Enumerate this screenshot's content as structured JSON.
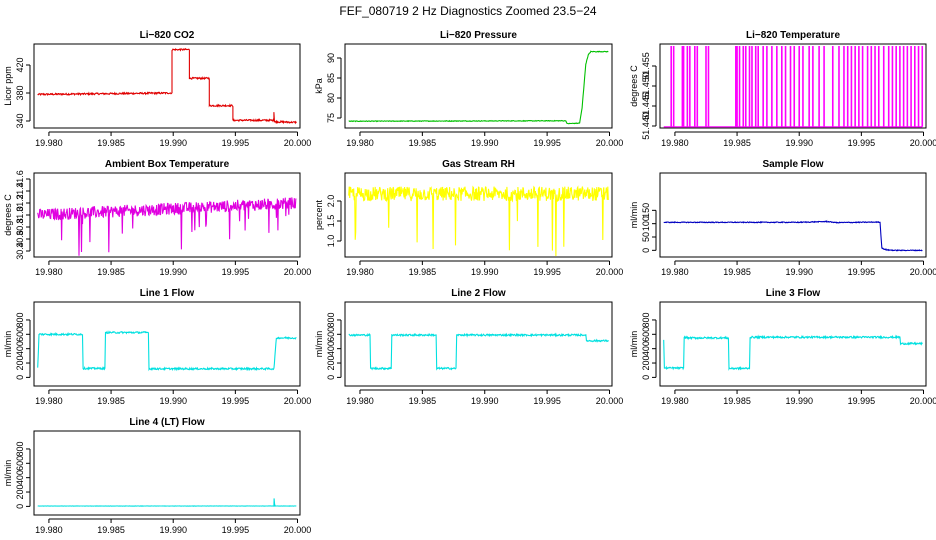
{
  "figure": {
    "title": "FEF_080719  2 Hz Diagnostics Zoomed 23.5−24"
  },
  "chart_data": [
    {
      "type": "line",
      "title": "Li−820 CO2",
      "ylabel": "Licor ppm",
      "color": "#e00000",
      "noise": 1.2,
      "xlim": [
        19.9788,
        20.0002
      ],
      "ylim": [
        330,
        450
      ],
      "xticks": [
        19.98,
        19.985,
        19.99,
        19.995,
        20.0
      ],
      "xtick_labels": [
        "19.980",
        "19.985",
        "19.990",
        "19.995",
        "20.000"
      ],
      "yticks": [
        340,
        380,
        420
      ],
      "ytick_labels": [
        "340",
        "380",
        "420"
      ],
      "x": [
        19.9791,
        19.9899,
        19.9899,
        19.9913,
        19.9913,
        19.9929,
        19.9929,
        19.9948,
        19.9948,
        19.9981,
        19.9981,
        19.99815,
        19.99815,
        19.9999
      ],
      "values": [
        378,
        380,
        442,
        442,
        401,
        401,
        362,
        362,
        341,
        341,
        353,
        339,
        339,
        338
      ]
    },
    {
      "type": "line",
      "title": "Li−820 Pressure",
      "ylabel": "kPa",
      "color": "#00c000",
      "noise": 0.08,
      "xlim": [
        19.9788,
        20.0002
      ],
      "ylim": [
        72.5,
        93.5
      ],
      "xticks": [
        19.98,
        19.985,
        19.99,
        19.995,
        20.0
      ],
      "xtick_labels": [
        "19.980",
        "19.985",
        "19.990",
        "19.995",
        "20.000"
      ],
      "yticks": [
        75,
        80,
        85,
        90
      ],
      "ytick_labels": [
        "75",
        "80",
        "85",
        "90"
      ],
      "x": [
        19.9791,
        19.9965,
        19.9966,
        19.9976,
        19.9978,
        19.9981,
        19.9983,
        19.9985,
        19.9999
      ],
      "values": [
        74.2,
        74.3,
        73.6,
        73.7,
        77.5,
        88.5,
        90.8,
        91.6,
        91.6
      ]
    },
    {
      "type": "spikes",
      "title": "Li−820 Temperature",
      "ylabel": "degrees C",
      "color": "#ff00ff",
      "xlim": [
        19.9788,
        20.0002
      ],
      "ylim": [
        51.4395,
        51.4605
      ],
      "xticks": [
        19.98,
        19.985,
        19.99,
        19.995,
        20.0
      ],
      "xtick_labels": [
        "19.980",
        "19.985",
        "19.990",
        "19.995",
        "20.000"
      ],
      "yticks": [
        51.44,
        51.445,
        51.45,
        51.455
      ],
      "ytick_labels": [
        "51.440",
        "51.445",
        "51.450",
        "51.455"
      ],
      "base": 51.4398,
      "high": 51.46,
      "spike_x": [
        19.9797,
        19.9799,
        19.9806,
        19.9807,
        19.981,
        19.9812,
        19.9816,
        19.9818,
        19.9825,
        19.9827,
        19.9849,
        19.985,
        19.9852,
        19.9855,
        19.9857,
        19.986,
        19.9862,
        19.9865,
        19.9867,
        19.9871,
        19.9874,
        19.9878,
        19.9882,
        19.9886,
        19.9889,
        19.9893,
        19.9896,
        19.99,
        19.9903,
        19.9908,
        19.9911,
        19.9916,
        19.992,
        19.9927,
        19.9932,
        19.9936,
        19.9939,
        19.9942,
        19.9945,
        19.9948,
        19.9951,
        19.9955,
        19.9958,
        19.9961,
        19.9964,
        19.9968,
        19.9972,
        19.9975,
        19.9978,
        19.9981,
        19.9984,
        19.9987,
        19.999,
        19.9993,
        19.9996,
        19.9999
      ]
    },
    {
      "type": "line",
      "title": "Ambient Box Temperature",
      "ylabel": "degrees C",
      "color": "#e000e0",
      "noise": 0.1,
      "dips": [
        -0.55,
        -0.35
      ],
      "xlim": [
        19.9788,
        20.0002
      ],
      "ylim": [
        30.3,
        31.7
      ],
      "xticks": [
        19.98,
        19.985,
        19.99,
        19.995,
        20.0
      ],
      "xtick_labels": [
        "19.980",
        "19.985",
        "19.990",
        "19.995",
        "20.000"
      ],
      "yticks": [
        30.4,
        30.6,
        30.8,
        31.0,
        31.2,
        31.4,
        31.6
      ],
      "ytick_labels": [
        "30.4",
        "30.6",
        "30.8",
        "31.0",
        "31.2",
        "31.4",
        "31.6"
      ],
      "x": [
        19.9791,
        19.9999
      ],
      "values": [
        31.0,
        31.2
      ]
    },
    {
      "type": "line",
      "title": "Gas Stream RH",
      "ylabel": "percent",
      "color": "#ffff00",
      "noise": 0.18,
      "dips": [
        -1.4,
        -0.8
      ],
      "xlim": [
        19.9788,
        20.0002
      ],
      "ylim": [
        0.6,
        2.7
      ],
      "xticks": [
        19.98,
        19.985,
        19.99,
        19.995,
        20.0
      ],
      "xtick_labels": [
        "19.980",
        "19.985",
        "19.990",
        "19.995",
        "20.000"
      ],
      "yticks": [
        1.0,
        1.5,
        2.0
      ],
      "ytick_labels": [
        "1.0",
        "1.5",
        "2.0"
      ],
      "x": [
        19.9791,
        19.9999
      ],
      "values": [
        2.18,
        2.18
      ]
    },
    {
      "type": "line",
      "title": "Sample Flow",
      "ylabel": "ml/min",
      "color": "#0000c0",
      "noise": 1.5,
      "xlim": [
        19.9788,
        20.0002
      ],
      "ylim": [
        -25,
        290
      ],
      "xticks": [
        19.98,
        19.985,
        19.99,
        19.995,
        20.0
      ],
      "xtick_labels": [
        "19.980",
        "19.985",
        "19.990",
        "19.995",
        "20.000"
      ],
      "yticks": [
        0,
        50,
        100,
        150
      ],
      "ytick_labels": [
        "0",
        "50",
        "100",
        "150"
      ],
      "x": [
        19.9791,
        19.99,
        19.9922,
        19.993,
        19.9965,
        19.99665,
        19.997,
        19.9975,
        19.9999
      ],
      "values": [
        105,
        105,
        108,
        104,
        106,
        8,
        2,
        0,
        0
      ]
    },
    {
      "type": "line",
      "title": "Line 1 Flow",
      "ylabel": "ml/min",
      "color": "#00e0e0",
      "noise": 12,
      "xlim": [
        19.9788,
        20.0002
      ],
      "ylim": [
        -120,
        1050
      ],
      "xticks": [
        19.98,
        19.985,
        19.99,
        19.995,
        20.0
      ],
      "xtick_labels": [
        "19.980",
        "19.985",
        "19.990",
        "19.995",
        "20.000"
      ],
      "yticks": [
        0,
        200,
        400,
        600,
        800
      ],
      "ytick_labels": [
        "0",
        "200",
        "400",
        "600",
        "800"
      ],
      "x": [
        19.9791,
        19.9792,
        19.9827,
        19.98275,
        19.9845,
        19.98455,
        19.988,
        19.98805,
        19.9981,
        19.9983,
        19.9999
      ],
      "values": [
        130,
        600,
        600,
        125,
        125,
        625,
        625,
        120,
        120,
        550,
        550
      ]
    },
    {
      "type": "line",
      "title": "Line 2 Flow",
      "ylabel": "ml/min",
      "color": "#00e0e0",
      "noise": 12,
      "xlim": [
        19.9788,
        20.0002
      ],
      "ylim": [
        -120,
        1050
      ],
      "xticks": [
        19.98,
        19.985,
        19.99,
        19.995,
        20.0
      ],
      "xtick_labels": [
        "19.980",
        "19.985",
        "19.990",
        "19.995",
        "20.000"
      ],
      "yticks": [
        0,
        200,
        400,
        600,
        800
      ],
      "ytick_labels": [
        "0",
        "200",
        "400",
        "600",
        "800"
      ],
      "x": [
        19.9791,
        19.9808,
        19.98085,
        19.9825,
        19.98255,
        19.9861,
        19.98615,
        19.9877,
        19.98775,
        19.9981,
        19.99815,
        19.9999
      ],
      "values": [
        590,
        590,
        125,
        125,
        590,
        590,
        125,
        125,
        590,
        590,
        510,
        510
      ]
    },
    {
      "type": "line",
      "title": "Line 3 Flow",
      "ylabel": "ml/min",
      "color": "#00e0e0",
      "noise": 12,
      "xlim": [
        19.9788,
        20.0002
      ],
      "ylim": [
        -120,
        1050
      ],
      "xticks": [
        19.98,
        19.985,
        19.99,
        19.995,
        20.0
      ],
      "xtick_labels": [
        "19.980",
        "19.985",
        "19.990",
        "19.995",
        "20.000"
      ],
      "yticks": [
        0,
        200,
        400,
        600,
        800
      ],
      "ytick_labels": [
        "0",
        "200",
        "400",
        "600",
        "800"
      ],
      "x": [
        19.9791,
        19.97915,
        19.9793,
        19.9807,
        19.98075,
        19.9811,
        19.9843,
        19.98435,
        19.986,
        19.98605,
        19.9981,
        19.99815,
        19.9999
      ],
      "values": [
        530,
        130,
        130,
        130,
        560,
        550,
        550,
        125,
        125,
        560,
        560,
        470,
        470
      ]
    },
    {
      "type": "line",
      "title": "Line 4 (LT) Flow",
      "ylabel": "ml/min",
      "color": "#00e0e0",
      "noise": 2,
      "xlim": [
        19.9788,
        20.0002
      ],
      "ylim": [
        -120,
        1050
      ],
      "xticks": [
        19.98,
        19.985,
        19.99,
        19.995,
        20.0
      ],
      "xtick_labels": [
        "19.980",
        "19.985",
        "19.990",
        "19.995",
        "20.000"
      ],
      "yticks": [
        0,
        200,
        400,
        600,
        800
      ],
      "ytick_labels": [
        "0",
        "200",
        "400",
        "600",
        "800"
      ],
      "x": [
        19.9791,
        19.9981,
        19.99812,
        19.99816,
        19.9982,
        19.9999
      ],
      "values": [
        5,
        5,
        110,
        30,
        5,
        5
      ]
    }
  ]
}
